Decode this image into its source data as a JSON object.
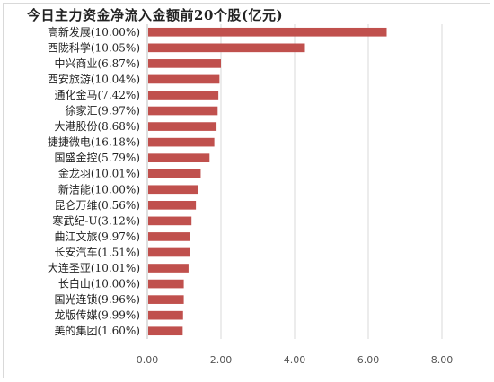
{
  "chart_data": {
    "type": "bar",
    "orientation": "horizontal",
    "title": "今日主力资金净流入金额前20个股(亿元)",
    "categories": [
      "高新发展(10.00%)",
      "西陇科学(10.05%)",
      "中兴商业(6.87%)",
      "西安旅游(10.04%)",
      "通化金马(7.42%)",
      "徐家汇(9.97%)",
      "大港股份(8.68%)",
      "捷捷微电(16.18%)",
      "国盛金控(5.79%)",
      "金龙羽(10.01%)",
      "新洁能(10.00%)",
      "昆仑万维(0.56%)",
      "寒武纪-U(3.12%)",
      "曲江文旅(9.97%)",
      "长安汽车(1.51%)",
      "大连圣亚(10.01%)",
      "长白山(10.00%)",
      "国光连锁(9.96%)",
      "龙版传媒(9.99%)",
      "美的集团(1.60%)"
    ],
    "values": [
      6.5,
      4.28,
      2.0,
      1.96,
      1.93,
      1.91,
      1.88,
      1.82,
      1.69,
      1.45,
      1.39,
      1.32,
      1.2,
      1.17,
      1.15,
      1.12,
      0.99,
      0.99,
      0.97,
      0.96
    ],
    "xlim": [
      0,
      9
    ],
    "xticks": [
      "0.00",
      "2.00",
      "4.00",
      "6.00",
      "8.00"
    ],
    "xtick_values": [
      0,
      2,
      4,
      6,
      8
    ],
    "grid": true,
    "bar_color": "#c0504d",
    "grid_color": "#d9d9d9"
  }
}
